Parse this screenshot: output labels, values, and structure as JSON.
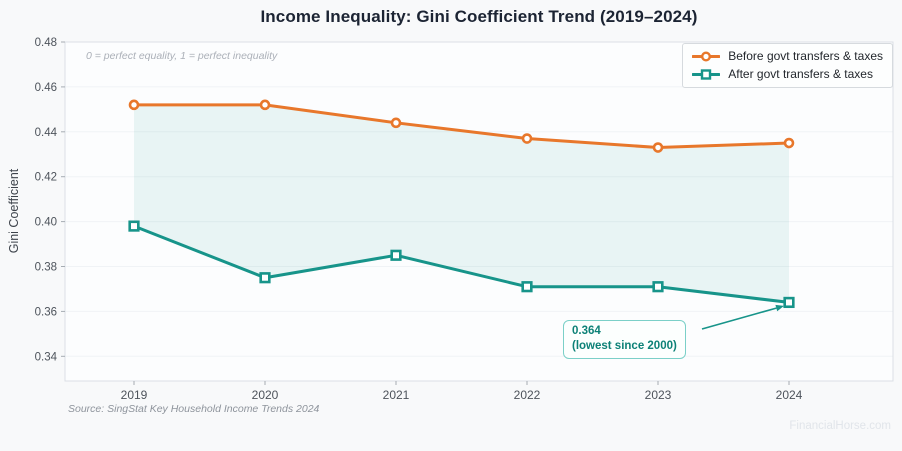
{
  "chart_data": {
    "type": "line",
    "title": "Income Inequality: Gini Coefficient Trend (2019–2024)",
    "ylabel": "Gini Coefficient",
    "xlabel": "",
    "note": "0 = perfect equality, 1 = perfect inequality",
    "x": [
      2019,
      2020,
      2021,
      2022,
      2023,
      2024
    ],
    "series": [
      {
        "name": "Before govt transfers & taxes",
        "marker": "circle",
        "color": "#e8772b",
        "values": [
          0.452,
          0.452,
          0.444,
          0.437,
          0.433,
          0.435
        ]
      },
      {
        "name": "After govt transfers & taxes",
        "marker": "square",
        "color": "#17948a",
        "values": [
          0.398,
          0.375,
          0.385,
          0.371,
          0.371,
          0.364
        ]
      }
    ],
    "ylim": [
      0.329,
      0.48
    ],
    "yticks": [
      0.34,
      0.36,
      0.38,
      0.4,
      0.42,
      0.44,
      0.46,
      0.48
    ],
    "grid": "horizontal",
    "legend_position": "top-right",
    "fill_between_series": true,
    "fill_color": "#17948a",
    "fill_opacity": 0.085,
    "annotation": {
      "line1": "0.364",
      "line2": "(lowest since 2000)",
      "target_series": 1,
      "target_x": 2024,
      "text_color": "#0d8177",
      "border_color": "#7bd0c8"
    },
    "source": "Source: SingStat Key Household Income Trends 2024",
    "watermark": "FinancialHorse.com"
  },
  "style_colors": {
    "figure_bg": "#f8f9fa",
    "plot_bg": "#fcfdfe",
    "frame": "#dbe0e5",
    "grid": "#f0f3f6",
    "tick": "#a6acb3",
    "tick_label": "#4d535b",
    "title": "#1c2433"
  }
}
